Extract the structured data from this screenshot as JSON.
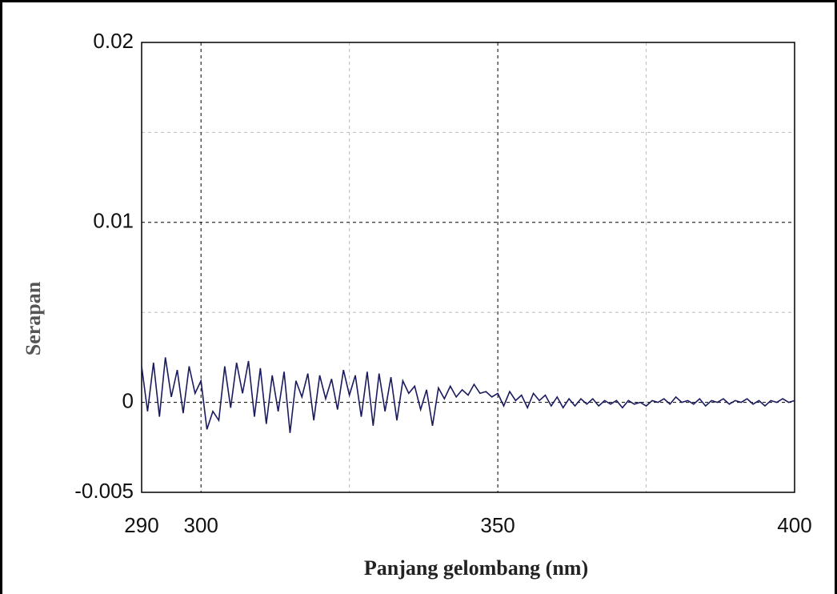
{
  "chart_data": {
    "type": "line",
    "x_label": "Panjang gelombang (nm)",
    "y_label": "Serapan",
    "xlim": [
      290,
      400
    ],
    "xticks": [
      290,
      300,
      350,
      400
    ],
    "ylim": [
      -0.005,
      0.02
    ],
    "yticks": [
      -0.005,
      0,
      0.01,
      0.02
    ],
    "grid": true,
    "x": [
      290,
      291,
      292,
      293,
      294,
      295,
      296,
      297,
      298,
      299,
      300,
      301,
      302,
      303,
      304,
      305,
      306,
      307,
      308,
      309,
      310,
      311,
      312,
      313,
      314,
      315,
      316,
      317,
      318,
      319,
      320,
      321,
      322,
      323,
      324,
      325,
      326,
      327,
      328,
      329,
      330,
      331,
      332,
      333,
      334,
      335,
      336,
      337,
      338,
      339,
      340,
      341,
      342,
      343,
      344,
      345,
      346,
      347,
      348,
      349,
      350,
      351,
      352,
      353,
      354,
      355,
      356,
      357,
      358,
      359,
      360,
      361,
      362,
      363,
      364,
      365,
      366,
      367,
      368,
      369,
      370,
      371,
      372,
      373,
      374,
      375,
      376,
      377,
      378,
      379,
      380,
      381,
      382,
      383,
      384,
      385,
      386,
      387,
      388,
      389,
      390,
      391,
      392,
      393,
      394,
      395,
      396,
      397,
      398,
      399,
      400
    ],
    "series": [
      {
        "color": "#1a1a5e",
        "values": [
          0.002,
          -0.0005,
          0.0022,
          -0.0008,
          0.0025,
          0.0003,
          0.0018,
          -0.0006,
          0.002,
          0.0005,
          0.0012,
          -0.0015,
          -0.0005,
          -0.001,
          0.002,
          -0.0003,
          0.0022,
          0.0005,
          0.0023,
          -0.0008,
          0.0019,
          -0.0012,
          0.0015,
          -0.0005,
          0.0017,
          -0.0017,
          0.0012,
          0.0003,
          0.0016,
          -0.001,
          0.0015,
          0.0002,
          0.0013,
          -0.0004,
          0.0018,
          0.0004,
          0.0015,
          -0.0008,
          0.0017,
          -0.0013,
          0.0016,
          -0.0005,
          0.0014,
          -0.001,
          0.0012,
          0.0005,
          0.0009,
          -0.0004,
          0.0007,
          -0.0013,
          0.0008,
          0.0002,
          0.0009,
          0.0003,
          0.0007,
          0.0004,
          0.001,
          0.0005,
          0.0006,
          0.0003,
          0.0005,
          -0.0002,
          0.0006,
          0.0001,
          0.0004,
          -0.0003,
          0.0005,
          0.0001,
          0.0004,
          -0.0002,
          0.0003,
          -0.0003,
          0.0002,
          -0.0002,
          0.0002,
          -0.0001,
          0.0002,
          -0.0002,
          0.0001,
          -0.0001,
          0.0001,
          -0.0003,
          0.0001,
          -0.0001,
          0,
          -0.0002,
          0.0001,
          0,
          0.0002,
          -0.0001,
          0.0003,
          0,
          0.0001,
          -0.0001,
          0.0002,
          -0.0002,
          0.0001,
          0,
          0.0002,
          -0.0001,
          0.0001,
          0,
          0.0002,
          -0.0001,
          0.0001,
          -0.0002,
          0.0001,
          0,
          0.0002,
          0,
          0.0001
        ]
      }
    ]
  }
}
